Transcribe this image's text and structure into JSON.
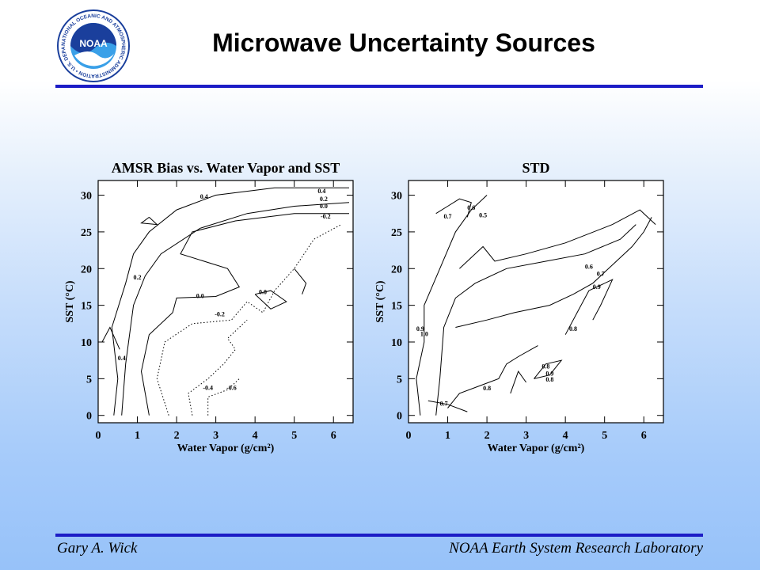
{
  "header": {
    "title": "Microwave Uncertainty Sources",
    "logo": {
      "text": "NOAA",
      "ring_text": "NATIONAL OCEANIC AND ATMOSPHERIC ADMINISTRATION • U.S. DEPARTMENT OF COMMERCE •"
    }
  },
  "footer": {
    "author": "Gary A. Wick",
    "organization": "NOAA Earth System Research Laboratory"
  },
  "colors": {
    "rule": "#1c1cc6",
    "logo_blue": "#1a3f9c",
    "logo_sky": "#3aa0e8"
  },
  "chart_data": [
    {
      "type": "contour",
      "title": "AMSR Bias vs. Water Vapor and SST",
      "xlabel": "Water Vapor (g/cm²)",
      "ylabel": "SST (°C)",
      "xlim": [
        0,
        6.5
      ],
      "ylim": [
        -1,
        32
      ],
      "xticks": [
        "0",
        "1",
        "2",
        "3",
        "4",
        "5",
        "6"
      ],
      "yticks": [
        "0",
        "5",
        "10",
        "15",
        "20",
        "25",
        "30"
      ],
      "contour_labels": [
        "0.4",
        "0.2",
        "0.0",
        "-0.2",
        "-0.4",
        "-0.6",
        "0.4",
        "0.2",
        "0.0",
        "-0.2",
        "0.0",
        "0.4"
      ],
      "negative_style": "dotted"
    },
    {
      "type": "contour",
      "title": "STD",
      "xlabel": "Water Vapor (g/cm²)",
      "ylabel": "SST (°C)",
      "xlim": [
        0,
        6.5
      ],
      "ylim": [
        -1,
        32
      ],
      "xticks": [
        "0",
        "1",
        "2",
        "3",
        "4",
        "5",
        "6"
      ],
      "yticks": [
        "0",
        "5",
        "10",
        "15",
        "20",
        "25",
        "30"
      ],
      "contour_labels": [
        "0.7",
        "0.6",
        "0.5",
        "0.6",
        "0.7",
        "0.9",
        "0.8",
        "0.8",
        "0.7",
        "0.8",
        "0.9",
        "1.0",
        "0.9",
        "0.8"
      ]
    }
  ]
}
